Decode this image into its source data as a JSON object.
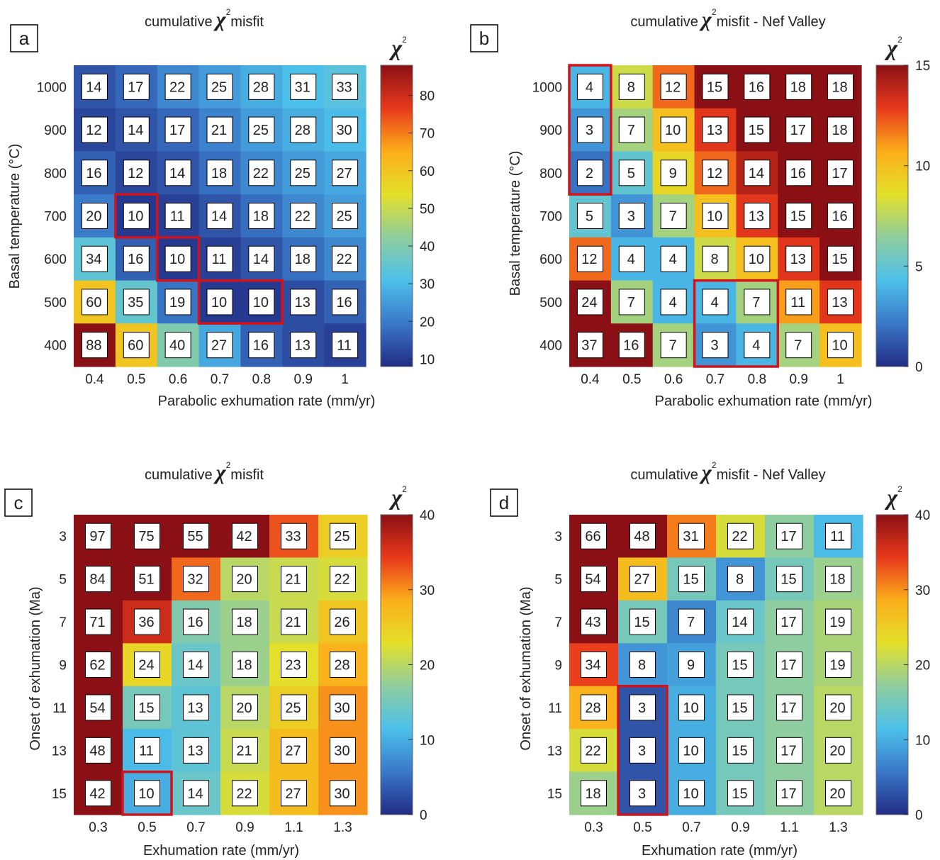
{
  "colormap": [
    "#222c84",
    "#3a78c8",
    "#4cc0ea",
    "#8fcd9e",
    "#e3e02a",
    "#fcae1a",
    "#e8391c",
    "#8b1015"
  ],
  "box_color": "#d3121a",
  "chart_data": [
    {
      "type": "heatmap",
      "panel": "a",
      "title_prefix": "cumulative",
      "title_symbol": "χ",
      "title_sup": "2",
      "title_suffix": "misfit",
      "xlabel": "Parabolic exhumation rate (mm/yr)",
      "ylabel": "Basal temperature (°C)",
      "x_ticks": [
        "0.4",
        "0.5",
        "0.6",
        "0.7",
        "0.8",
        "0.9",
        "1"
      ],
      "y_ticks": [
        "1000",
        "900",
        "800",
        "700",
        "600",
        "500",
        "400"
      ],
      "colorbar_label": "χ",
      "colorbar_sup": "2",
      "clim": [
        8,
        88
      ],
      "colorbar_ticks": [
        10,
        20,
        30,
        40,
        50,
        60,
        70,
        80
      ],
      "values": [
        [
          14,
          17,
          22,
          25,
          28,
          31,
          33
        ],
        [
          12,
          14,
          17,
          21,
          25,
          28,
          30
        ],
        [
          16,
          12,
          14,
          18,
          22,
          25,
          27
        ],
        [
          20,
          10,
          11,
          14,
          18,
          22,
          25
        ],
        [
          34,
          16,
          10,
          11,
          14,
          18,
          22
        ],
        [
          60,
          35,
          19,
          10,
          10,
          13,
          16
        ],
        [
          88,
          60,
          40,
          27,
          16,
          13,
          11
        ]
      ],
      "highlight_cells": [
        [
          3,
          1
        ],
        [
          4,
          2
        ],
        [
          5,
          3
        ],
        [
          5,
          4
        ]
      ]
    },
    {
      "type": "heatmap",
      "panel": "b",
      "title_prefix": "cumulative",
      "title_symbol": "χ",
      "title_sup": "2",
      "title_suffix": "misfit - Nef Valley",
      "xlabel": "Parabolic exhumation rate (mm/yr)",
      "ylabel": "Basal temperature (°C)",
      "x_ticks": [
        "0.4",
        "0.5",
        "0.6",
        "0.7",
        "0.8",
        "0.9",
        "1"
      ],
      "y_ticks": [
        "1000",
        "900",
        "800",
        "700",
        "600",
        "500",
        "400"
      ],
      "colorbar_label": "χ",
      "colorbar_sup": "2",
      "clim": [
        0,
        15
      ],
      "colorbar_ticks": [
        0,
        5,
        10,
        15
      ],
      "values": [
        [
          4,
          8,
          12,
          15,
          16,
          18,
          18
        ],
        [
          3,
          7,
          10,
          13,
          15,
          17,
          18
        ],
        [
          2,
          5,
          9,
          12,
          14,
          16,
          17
        ],
        [
          5,
          3,
          7,
          10,
          13,
          15,
          16
        ],
        [
          12,
          4,
          4,
          8,
          10,
          13,
          15
        ],
        [
          24,
          7,
          4,
          4,
          7,
          11,
          13
        ],
        [
          37,
          16,
          7,
          3,
          4,
          7,
          10
        ]
      ],
      "highlight_cells": [
        [
          0,
          0
        ],
        [
          1,
          0
        ],
        [
          2,
          0
        ],
        [
          5,
          3
        ],
        [
          5,
          4
        ],
        [
          6,
          3
        ],
        [
          6,
          4
        ]
      ]
    },
    {
      "type": "heatmap",
      "panel": "c",
      "title_prefix": "cumulative",
      "title_symbol": "χ",
      "title_sup": "2",
      "title_suffix": "misfit",
      "xlabel": "Exhumation rate (mm/yr)",
      "ylabel": "Onset of exhumation (Ma)",
      "x_ticks": [
        "0.3",
        "0.5",
        "0.7",
        "0.9",
        "1.1",
        "1.3"
      ],
      "y_ticks": [
        "3",
        "5",
        "7",
        "9",
        "11",
        "13",
        "15"
      ],
      "colorbar_label": "χ",
      "colorbar_sup": "2",
      "clim": [
        0,
        40
      ],
      "colorbar_ticks": [
        0,
        10,
        20,
        30,
        40
      ],
      "values": [
        [
          97,
          75,
          55,
          42,
          33,
          25
        ],
        [
          84,
          51,
          32,
          20,
          21,
          22
        ],
        [
          71,
          36,
          16,
          18,
          21,
          26
        ],
        [
          62,
          24,
          14,
          18,
          23,
          28
        ],
        [
          54,
          15,
          13,
          20,
          25,
          30
        ],
        [
          48,
          11,
          13,
          21,
          27,
          30
        ],
        [
          42,
          10,
          14,
          22,
          27,
          30
        ]
      ],
      "highlight_cells": [
        [
          6,
          1
        ]
      ]
    },
    {
      "type": "heatmap",
      "panel": "d",
      "title_prefix": "cumulative",
      "title_symbol": "χ",
      "title_sup": "2",
      "title_suffix": "misfit - Nef Valley",
      "xlabel": "Exhumation rate (mm/yr)",
      "ylabel": "Onset of exhumation (Ma)",
      "x_ticks": [
        "0.3",
        "0.5",
        "0.7",
        "0.9",
        "1.1",
        "1.3"
      ],
      "y_ticks": [
        "3",
        "5",
        "7",
        "9",
        "11",
        "13",
        "15"
      ],
      "colorbar_label": "χ",
      "colorbar_sup": "2",
      "clim": [
        0,
        40
      ],
      "colorbar_ticks": [
        0,
        10,
        20,
        30,
        40
      ],
      "values": [
        [
          66,
          48,
          31,
          22,
          17,
          11
        ],
        [
          54,
          27,
          15,
          8,
          15,
          18
        ],
        [
          43,
          15,
          7,
          14,
          17,
          19
        ],
        [
          34,
          8,
          9,
          15,
          17,
          19
        ],
        [
          28,
          3,
          10,
          15,
          17,
          20
        ],
        [
          22,
          3,
          10,
          15,
          17,
          20
        ],
        [
          18,
          3,
          10,
          15,
          17,
          20
        ]
      ],
      "highlight_cells": [
        [
          4,
          1
        ],
        [
          5,
          1
        ],
        [
          6,
          1
        ]
      ]
    }
  ]
}
